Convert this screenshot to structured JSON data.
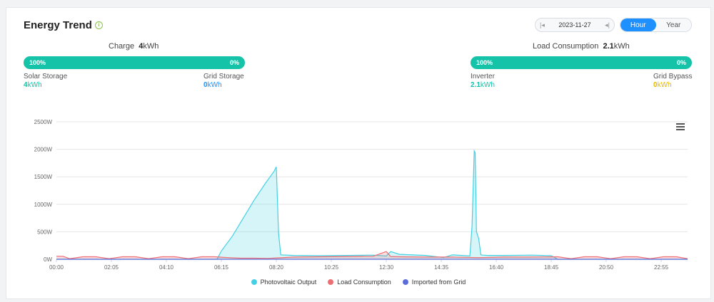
{
  "header": {
    "title": "Energy Trend"
  },
  "date_picker": {
    "value": "2023-11-27"
  },
  "period_toggle": {
    "options": [
      "Hour",
      "Year"
    ],
    "selected": "Hour"
  },
  "charge": {
    "label": "Charge",
    "value": "4",
    "unit": "kWh",
    "bar_left": "100%",
    "bar_right": "0%",
    "left_label": "Solar Storage",
    "left_value": "4",
    "left_unit": "kWh",
    "right_label": "Grid Storage",
    "right_value": "0",
    "right_unit": "kWh"
  },
  "load": {
    "label": "Load Consumption",
    "value": "2.1",
    "unit": "kWh",
    "bar_left": "100%",
    "bar_right": "0%",
    "left_label": "Inverter",
    "left_value": "2.1",
    "left_unit": "kWh",
    "right_label": "Grid Bypass",
    "right_value": "0",
    "right_unit": "kWh"
  },
  "colors": {
    "pv": "#44d0e2",
    "load": "#ee6e73",
    "grid": "#5b6ddb",
    "accent": "#14c3a8",
    "bypass": "#e6b800"
  },
  "chart_data": {
    "type": "area",
    "x_ticks": [
      "00:00",
      "02:05",
      "04:10",
      "06:15",
      "08:20",
      "10:25",
      "12:30",
      "14:35",
      "16:40",
      "18:45",
      "20:50",
      "22:55"
    ],
    "y_ticks": [
      "0W",
      "500W",
      "1000W",
      "1500W",
      "2000W",
      "2500W"
    ],
    "ylim": [
      0,
      2500
    ],
    "xlim_minutes": [
      0,
      1435
    ],
    "series": [
      {
        "name": "Photovoltaic Output",
        "x": [
          "00:00",
          "06:05",
          "06:15",
          "06:40",
          "07:05",
          "07:30",
          "07:55",
          "08:15",
          "08:20",
          "08:25",
          "08:30",
          "09:00",
          "10:00",
          "11:00",
          "12:00",
          "12:30",
          "12:40",
          "13:00",
          "14:00",
          "14:40",
          "15:00",
          "15:40",
          "15:45",
          "15:50",
          "15:52",
          "15:55",
          "16:00",
          "16:05",
          "16:10",
          "16:20",
          "17:00",
          "18:00",
          "18:45",
          "19:00",
          "23:55"
        ],
        "values": [
          0,
          0,
          150,
          420,
          750,
          1080,
          1380,
          1600,
          1680,
          480,
          80,
          70,
          65,
          70,
          75,
          60,
          140,
          90,
          70,
          30,
          80,
          60,
          600,
          1970,
          1940,
          500,
          380,
          80,
          75,
          70,
          70,
          75,
          65,
          0,
          0
        ]
      },
      {
        "name": "Load Consumption",
        "x": [
          "00:00",
          "00:15",
          "00:30",
          "01:00",
          "01:30",
          "02:00",
          "02:30",
          "03:00",
          "03:30",
          "04:00",
          "04:30",
          "05:00",
          "05:30",
          "06:00",
          "06:30",
          "07:00",
          "07:30",
          "08:00",
          "09:00",
          "10:00",
          "11:00",
          "12:00",
          "12:30",
          "12:40",
          "13:00",
          "14:00",
          "15:00",
          "16:00",
          "17:00",
          "18:00",
          "19:00",
          "19:30",
          "20:00",
          "20:30",
          "21:00",
          "21:30",
          "22:00",
          "22:30",
          "23:00",
          "23:30",
          "23:55"
        ],
        "values": [
          55,
          55,
          10,
          45,
          45,
          10,
          45,
          45,
          10,
          45,
          45,
          10,
          45,
          45,
          30,
          20,
          20,
          15,
          40,
          45,
          50,
          55,
          140,
          50,
          45,
          40,
          40,
          30,
          40,
          40,
          45,
          10,
          45,
          45,
          10,
          45,
          45,
          10,
          45,
          45,
          10
        ]
      },
      {
        "name": "Imported from Grid",
        "x": [
          "00:00",
          "23:55"
        ],
        "values": [
          0,
          0
        ]
      }
    ]
  }
}
